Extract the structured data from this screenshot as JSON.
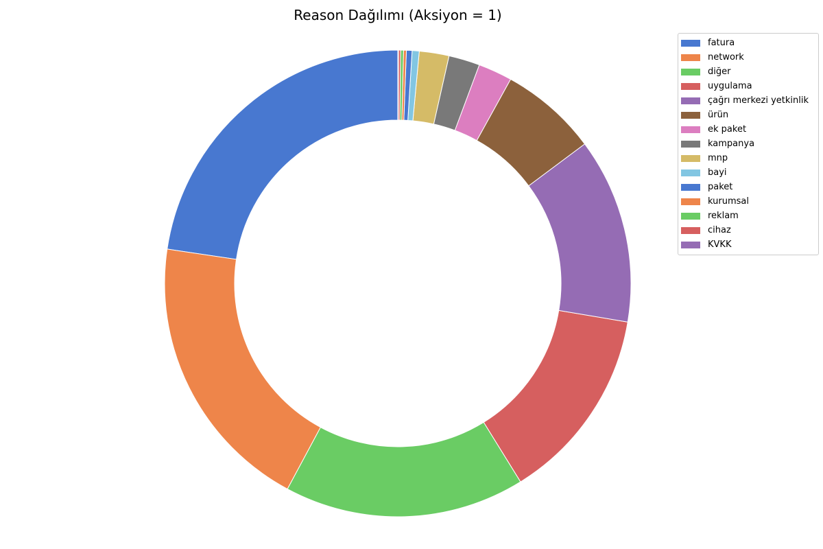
{
  "chart_data": {
    "type": "pie",
    "variant": "donut",
    "title": "Reason Dağılımı (Aksiyon = 1)",
    "legend_position": "top-right",
    "start_angle_deg": 90,
    "direction": "counterclockwise",
    "slices": [
      {
        "label": "fatura",
        "value": 23.1,
        "color": "#4878d0"
      },
      {
        "label": "network",
        "value": 19.9,
        "color": "#ee854a"
      },
      {
        "label": "diğer",
        "value": 17.0,
        "color": "#6acc64"
      },
      {
        "label": "uygulama",
        "value": 13.8,
        "color": "#d65f5f"
      },
      {
        "label": "çağrı merkezi yetkinlik",
        "value": 13.1,
        "color": "#956cb4"
      },
      {
        "label": "ürün",
        "value": 6.9,
        "color": "#8c613c"
      },
      {
        "label": "ek paket",
        "value": 2.4,
        "color": "#dc7ec0"
      },
      {
        "label": "kampanya",
        "value": 2.2,
        "color": "#797979"
      },
      {
        "label": "mnp",
        "value": 2.1,
        "color": "#d5bb67"
      },
      {
        "label": "bayi",
        "value": 0.5,
        "color": "#82c6e2"
      },
      {
        "label": "paket",
        "value": 0.4,
        "color": "#4878d0"
      },
      {
        "label": "kurumsal",
        "value": 0.2,
        "color": "#ee854a"
      },
      {
        "label": "reklam",
        "value": 0.2,
        "color": "#6acc64"
      },
      {
        "label": "cihaz",
        "value": 0.15,
        "color": "#d65f5f"
      },
      {
        "label": "KVKK",
        "value": 0.05,
        "color": "#956cb4"
      }
    ]
  }
}
